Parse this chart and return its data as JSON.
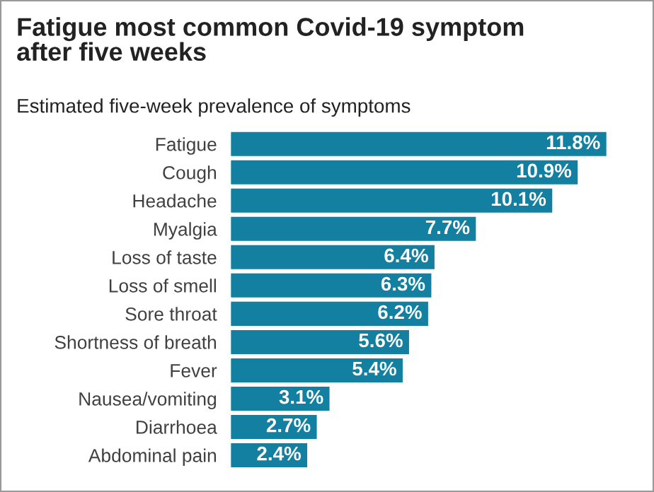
{
  "chart_data": {
    "type": "bar",
    "orientation": "horizontal",
    "title": "Fatigue most common Covid-19 symptom\nafter five weeks",
    "subtitle": "Estimated five-week prevalence of symptoms",
    "categories": [
      "Fatigue",
      "Cough",
      "Headache",
      "Myalgia",
      "Loss of taste",
      "Loss of smell",
      "Sore throat",
      "Shortness of breath",
      "Fever",
      "Nausea/vomiting",
      "Diarrhoea",
      "Abdominal pain"
    ],
    "values": [
      11.8,
      10.9,
      10.1,
      7.7,
      6.4,
      6.3,
      6.2,
      5.6,
      5.4,
      3.1,
      2.7,
      2.4
    ],
    "value_labels": [
      "11.8%",
      "10.9%",
      "10.1%",
      "7.7%",
      "6.4%",
      "6.3%",
      "6.2%",
      "5.6%",
      "5.4%",
      "3.1%",
      "2.7%",
      "2.4%"
    ],
    "color": "#1380a1",
    "grid": false,
    "legend": false
  }
}
